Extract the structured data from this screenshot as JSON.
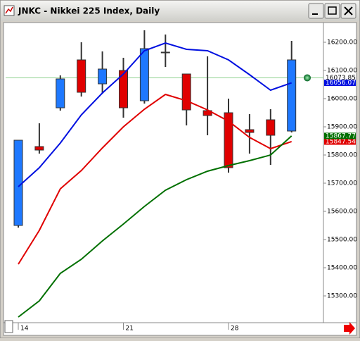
{
  "chart_data": {
    "type": "candlestick",
    "title": "JNKC - Nikkei 225 Index, Daily",
    "categories": [
      "14",
      null,
      null,
      null,
      null,
      "21",
      null,
      null,
      null,
      null,
      "28",
      null,
      null,
      null
    ],
    "open": [
      15550,
      15830,
      15967.5,
      16137.5,
      16052.5,
      16100,
      15992.5,
      16165,
      16087.5,
      15957.5,
      15950,
      15890,
      15925,
      15885
    ],
    "high": [
      15852.5,
      15912.5,
      16082.5,
      16200,
      16167.5,
      16145,
      16242.5,
      16227.5,
      16087.5,
      16150,
      16000,
      15945,
      15962.5,
      16205
    ],
    "low": [
      15542.5,
      15805,
      15957.5,
      16007.5,
      16017.5,
      15932.5,
      15982.5,
      16112.5,
      15905,
      15870,
      15737.5,
      15805,
      15765,
      15880
    ],
    "close": [
      15852.5,
      15817.5,
      16070,
      16022.5,
      16105,
      15967.5,
      16177.5,
      16162.5,
      15960,
      15940,
      15755,
      15880,
      15870,
      16137.5
    ],
    "up_color": "#1e78ff",
    "down_color": "#e00000",
    "lines": [
      {
        "color": "#0010e0",
        "values": [
          15687.5,
          15755,
          15842.5,
          15942.5,
          16020,
          16087.5,
          16170,
          16197.5,
          16175,
          16170,
          16137.5,
          16085,
          16030,
          16056.07
        ]
      },
      {
        "color": "#e00000",
        "values": [
          15412.5,
          15532.5,
          15680,
          15745,
          15825,
          15900,
          15962.5,
          16015,
          15992.5,
          15960,
          15920,
          15862.5,
          15822.5,
          15847.54
        ]
      },
      {
        "color": "#007000",
        "values": [
          15225,
          15282.5,
          15380,
          15430,
          15495,
          15555,
          15617.5,
          15675,
          15712.5,
          15742.5,
          15762.5,
          15780,
          15800,
          15867.77
        ]
      }
    ],
    "price_line": 16073.85,
    "price_line_color": "#8fd08f",
    "ylim": [
      15205,
      16275
    ],
    "yticks": [
      {
        "value": 15300,
        "label": "15300.00"
      },
      {
        "value": 15400,
        "label": "15400.00"
      },
      {
        "value": 15500,
        "label": "15500.00"
      },
      {
        "value": 15600,
        "label": "15600.00"
      },
      {
        "value": 15700,
        "label": "15700.00"
      },
      {
        "value": 15800,
        "label": "15800.00"
      },
      {
        "value": 15900,
        "label": "15900.00"
      },
      {
        "value": 16000,
        "label": "16000.00"
      },
      {
        "value": 16100,
        "label": "16100.00"
      },
      {
        "value": 16200,
        "label": "16200.00"
      }
    ]
  }
}
